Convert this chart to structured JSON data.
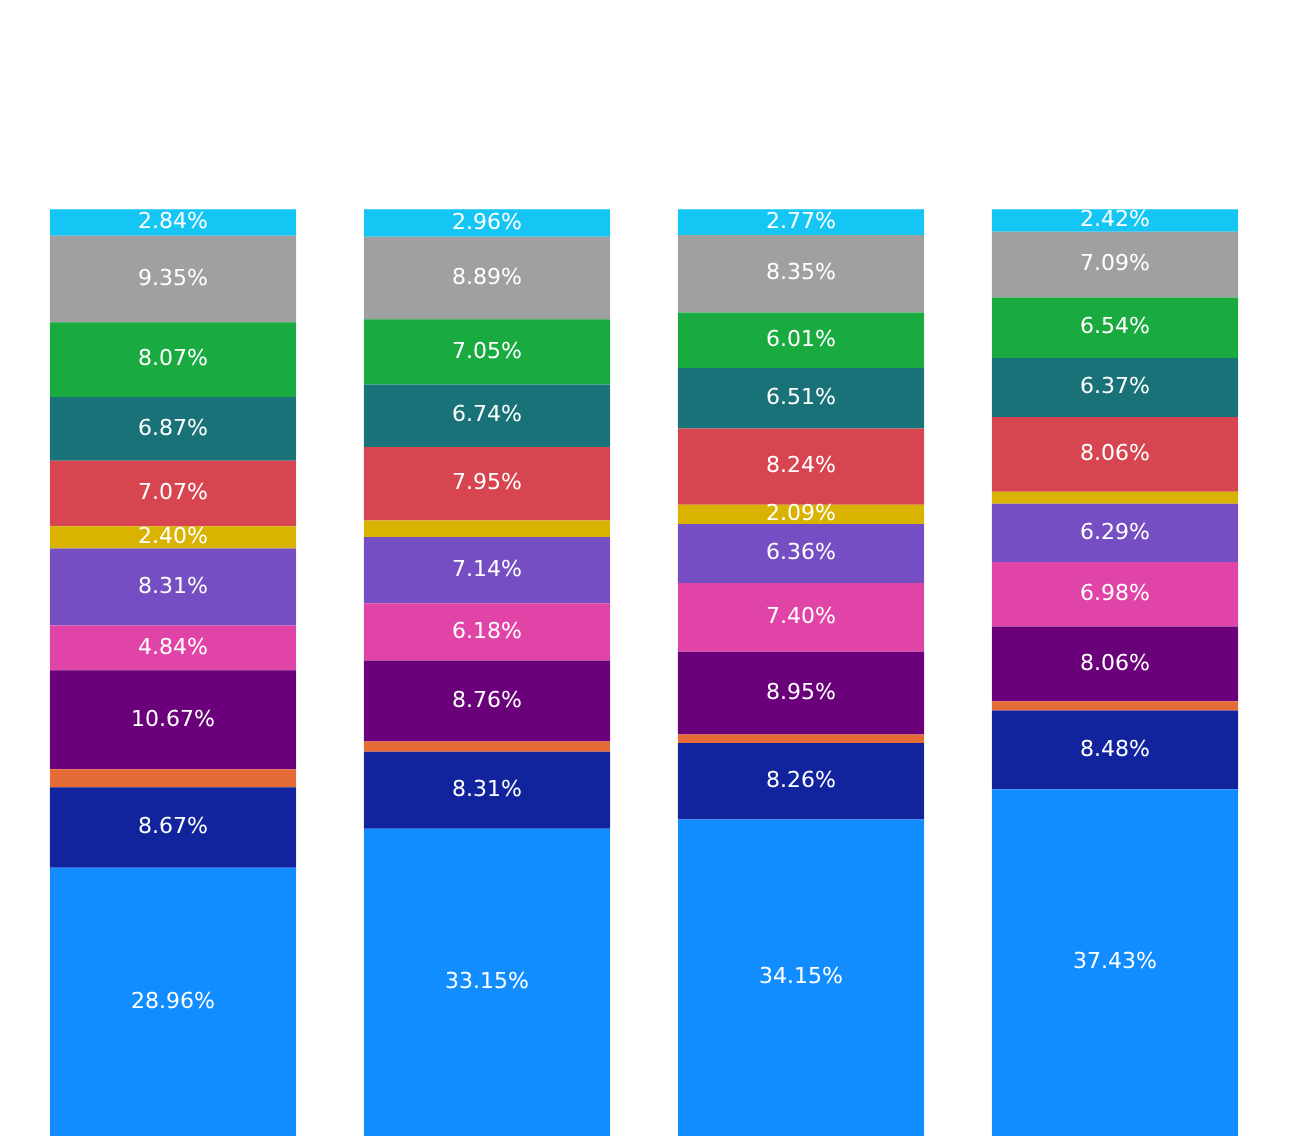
{
  "chart_data": {
    "type": "bar",
    "stacked": true,
    "grid": false,
    "legend": false,
    "tick_labels": false,
    "categories": [
      null,
      null,
      null,
      null
    ],
    "series": [
      {
        "color": "#118dff",
        "values": [
          28.96,
          33.15,
          34.15,
          37.43
        ],
        "value_labels": [
          "28.96%",
          "33.15%",
          "34.15%",
          "37.43%"
        ]
      },
      {
        "color": "#12239e",
        "values": [
          8.67,
          8.31,
          8.26,
          8.48
        ],
        "value_labels": [
          "8.67%",
          "8.31%",
          "8.26%",
          "8.48%"
        ]
      },
      {
        "color": "#e66c37",
        "values": [
          1.95,
          1.1,
          0.91,
          1.0
        ],
        "value_labels": [
          null,
          null,
          null,
          null
        ]
      },
      {
        "color": "#6b007b",
        "values": [
          10.67,
          8.76,
          8.95,
          8.06
        ],
        "value_labels": [
          "10.67%",
          "8.76%",
          "8.95%",
          "8.06%"
        ]
      },
      {
        "color": "#e044a7",
        "values": [
          4.84,
          6.18,
          7.4,
          6.98
        ],
        "value_labels": [
          "4.84%",
          "6.18%",
          "7.40%",
          "6.98%"
        ]
      },
      {
        "color": "#744ec2",
        "values": [
          8.31,
          7.14,
          6.36,
          6.29
        ],
        "value_labels": [
          "8.31%",
          "7.14%",
          "6.36%",
          "6.29%"
        ]
      },
      {
        "color": "#d9b300",
        "values": [
          2.4,
          1.77,
          2.09,
          1.28
        ],
        "value_labels": [
          "2.40%",
          null,
          "2.09%",
          null
        ]
      },
      {
        "color": "#d64550",
        "values": [
          7.07,
          7.95,
          8.24,
          8.06
        ],
        "value_labels": [
          "7.07%",
          "7.95%",
          "8.24%",
          "8.06%"
        ]
      },
      {
        "color": "#197278",
        "values": [
          6.87,
          6.74,
          6.51,
          6.37
        ],
        "value_labels": [
          "6.87%",
          "6.74%",
          "6.51%",
          "6.37%"
        ]
      },
      {
        "color": "#1aab40",
        "values": [
          8.07,
          7.05,
          6.01,
          6.54
        ],
        "value_labels": [
          "8.07%",
          "7.05%",
          "6.01%",
          "6.54%"
        ]
      },
      {
        "color": "#a0a0a0",
        "values": [
          9.35,
          8.89,
          8.35,
          7.09
        ],
        "value_labels": [
          "9.35%",
          "8.89%",
          "8.35%",
          "7.09%"
        ]
      },
      {
        "color": "#15c6f4",
        "values": [
          2.84,
          2.96,
          2.77,
          2.42
        ],
        "value_labels": [
          "2.84%",
          "2.96%",
          "2.77%",
          "2.42%"
        ]
      }
    ]
  }
}
